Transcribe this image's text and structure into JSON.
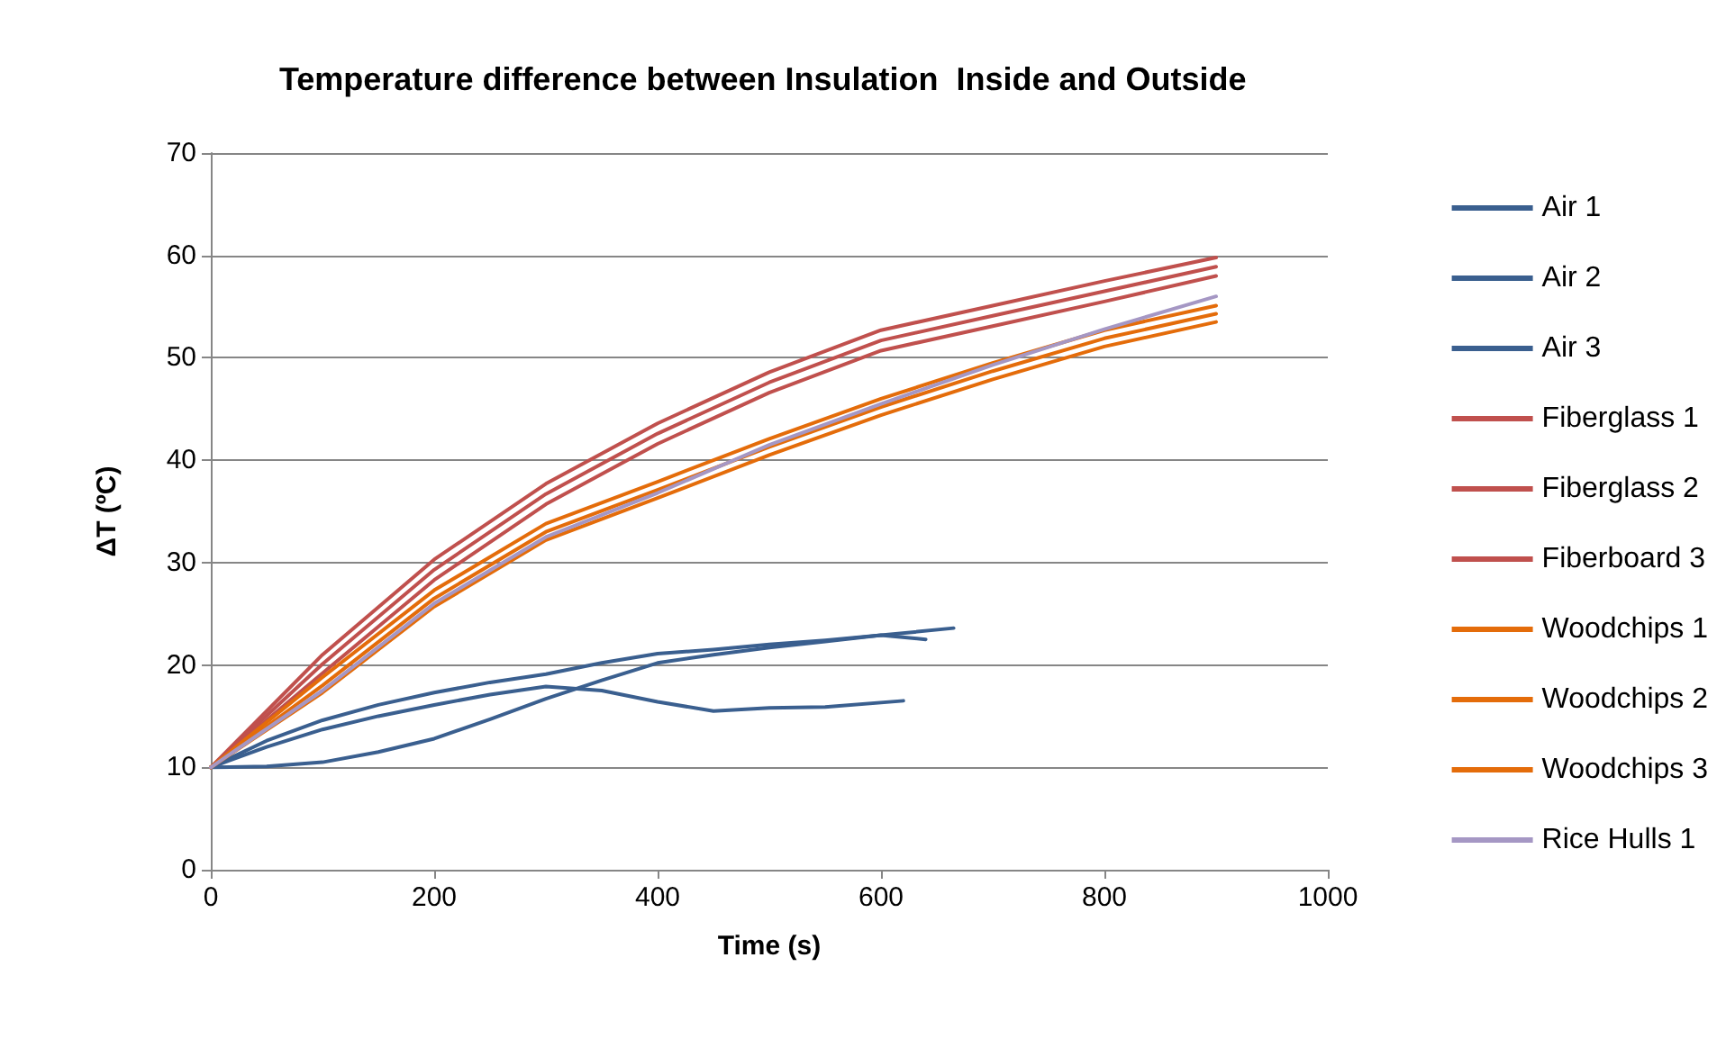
{
  "chart_data": {
    "type": "line",
    "title": "Temperature difference between Insulation  Inside and Outside",
    "xlabel": "Time (s)",
    "ylabel": "ΔT (ºC)",
    "xlim": [
      0,
      1000
    ],
    "xticks": [
      0,
      200,
      400,
      600,
      800,
      1000
    ],
    "ylim": [
      0,
      70
    ],
    "yticks": [
      0,
      10,
      20,
      30,
      40,
      50,
      60,
      70
    ],
    "grid": "y",
    "legend": "right",
    "marker": "none",
    "line_style": "solid",
    "series": [
      {
        "name": "Air 1",
        "color": "#3a5f8f",
        "x": [
          0,
          50,
          100,
          150,
          200,
          250,
          300,
          350,
          400,
          450,
          500,
          550,
          600,
          665
        ],
        "values": [
          10,
          12.6,
          14.6,
          16.1,
          17.3,
          18.3,
          19.1,
          20.2,
          21.1,
          21.5,
          22,
          22.4,
          22.9,
          23.6
        ]
      },
      {
        "name": "Air 2",
        "color": "#3a5f8f",
        "x": [
          0,
          50,
          100,
          150,
          200,
          250,
          300,
          350,
          400,
          450,
          500,
          550,
          620
        ],
        "values": [
          10,
          12,
          13.7,
          15,
          16.1,
          17.1,
          17.9,
          17.5,
          16.4,
          15.5,
          15.8,
          15.9,
          16.5
        ]
      },
      {
        "name": "Air 3",
        "color": "#3a5f8f",
        "x": [
          0,
          50,
          100,
          150,
          200,
          250,
          300,
          350,
          400,
          450,
          500,
          550,
          600,
          640
        ],
        "values": [
          10,
          10.1,
          10.5,
          11.5,
          12.8,
          14.7,
          16.7,
          18.5,
          20.2,
          21,
          21.7,
          22.3,
          22.9,
          22.5
        ]
      },
      {
        "name": "Fiberglass 1",
        "color": "#c0504d",
        "x": [
          0,
          100,
          200,
          300,
          400,
          500,
          600,
          700,
          800,
          900
        ],
        "values": [
          10,
          21,
          30.3,
          37.7,
          43.6,
          48.6,
          52.7,
          55.1,
          57.5,
          59.8
        ]
      },
      {
        "name": "Fiberglass 2",
        "color": "#c0504d",
        "x": [
          0,
          100,
          200,
          300,
          400,
          500,
          600,
          700,
          800,
          900
        ],
        "values": [
          10,
          20.1,
          29.3,
          36.7,
          42.6,
          47.6,
          51.7,
          54.1,
          56.5,
          58.9
        ]
      },
      {
        "name": "Fiberboard 3",
        "color": "#c0504d",
        "x": [
          0,
          100,
          200,
          300,
          400,
          500,
          600,
          700,
          800,
          900
        ],
        "values": [
          10,
          19.2,
          28.3,
          35.7,
          41.6,
          46.6,
          50.7,
          53.1,
          55.5,
          58
        ]
      },
      {
        "name": "Woodchips 1",
        "color": "#e46c0a",
        "x": [
          0,
          100,
          200,
          300,
          400,
          500,
          600,
          700,
          800,
          900
        ],
        "values": [
          10,
          18.8,
          27.3,
          33.8,
          37.9,
          42.1,
          46,
          49.5,
          52.7,
          55.1
        ]
      },
      {
        "name": "Woodchips 2",
        "color": "#e46c0a",
        "x": [
          0,
          100,
          200,
          300,
          400,
          500,
          600,
          700,
          800,
          900
        ],
        "values": [
          10,
          18,
          26.5,
          33,
          37.1,
          41.3,
          45.2,
          48.7,
          51.9,
          54.3
        ]
      },
      {
        "name": "Woodchips 3",
        "color": "#e46c0a",
        "x": [
          0,
          100,
          200,
          300,
          400,
          500,
          600,
          700,
          800,
          900
        ],
        "values": [
          10,
          17.3,
          25.7,
          32.2,
          36.3,
          40.5,
          44.4,
          47.9,
          51.1,
          53.5
        ]
      },
      {
        "name": "Rice Hulls 1",
        "color": "#a597c4",
        "x": [
          0,
          100,
          200,
          300,
          400,
          500,
          600,
          700,
          800,
          900
        ],
        "values": [
          10,
          17.5,
          26,
          32.5,
          36.8,
          41.5,
          45.5,
          49.3,
          52.8,
          56
        ]
      }
    ]
  }
}
